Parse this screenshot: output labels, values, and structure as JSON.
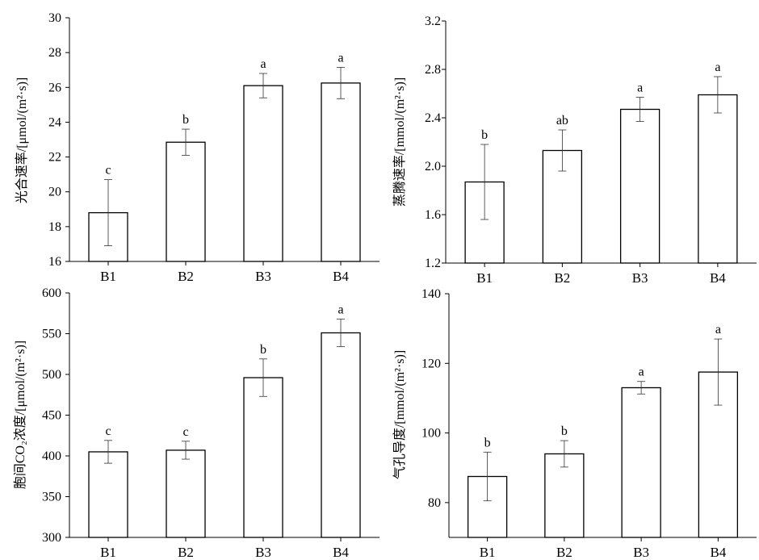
{
  "chart_data": [
    {
      "type": "bar",
      "ylabel": "光合速率/[μmol/(m²·s)]",
      "categories": [
        "B1",
        "B2",
        "B3",
        "B4"
      ],
      "values": [
        18.8,
        22.85,
        26.1,
        26.25
      ],
      "errors": [
        1.9,
        0.75,
        0.7,
        0.9
      ],
      "significance": [
        "c",
        "b",
        "a",
        "a"
      ],
      "ylim": [
        16,
        30
      ],
      "yticks": [
        "16",
        "18",
        "20",
        "22",
        "24",
        "26",
        "28",
        "30"
      ],
      "grid": false
    },
    {
      "type": "bar",
      "ylabel": "蒸腾速率/[mmol/(m²·s)]",
      "categories": [
        "B1",
        "B2",
        "B3",
        "B4"
      ],
      "values": [
        1.87,
        2.13,
        2.47,
        2.59
      ],
      "errors": [
        0.31,
        0.17,
        0.1,
        0.15
      ],
      "significance": [
        "b",
        "ab",
        "a",
        "a"
      ],
      "ylim": [
        1.2,
        3.2
      ],
      "yticks": [
        "1.2",
        "1.6",
        "2.0",
        "2.4",
        "2.8",
        "3.2"
      ],
      "grid": false
    },
    {
      "type": "bar",
      "ylabel": "胞间CO₂浓度/[μmol/(m²·s)]",
      "categories": [
        "B1",
        "B2",
        "B3",
        "B4"
      ],
      "values": [
        405,
        407,
        496,
        551
      ],
      "errors": [
        14,
        11,
        23,
        17
      ],
      "significance": [
        "c",
        "c",
        "b",
        "a"
      ],
      "ylim": [
        300,
        600
      ],
      "yticks": [
        "300",
        "350",
        "400",
        "450",
        "500",
        "550",
        "600"
      ],
      "grid": false
    },
    {
      "type": "bar",
      "ylabel": "气孔导度/[mmol/(m²·s)]",
      "categories": [
        "B1",
        "B2",
        "B3",
        "B4"
      ],
      "values": [
        87.5,
        94,
        113,
        117.5
      ],
      "errors": [
        7,
        3.8,
        1.8,
        9.5
      ],
      "significance": [
        "b",
        "b",
        "a",
        "a"
      ],
      "ylim": [
        70,
        140
      ],
      "yticks": [
        "80",
        "100",
        "120",
        "140"
      ],
      "grid": false
    }
  ]
}
